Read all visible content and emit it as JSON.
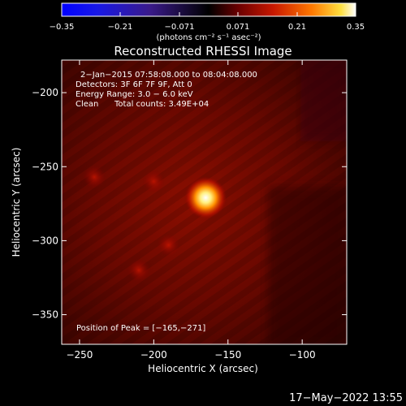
{
  "colorbar": {
    "ticks": [
      "−0.35",
      "−0.21",
      "−0.071",
      "0.071",
      "0.21",
      "0.35"
    ],
    "unit_label": "(photons cm⁻² s⁻¹ asec⁻²)",
    "range": [
      -0.35,
      0.35
    ]
  },
  "chart_data": {
    "type": "heatmap",
    "title": "Reconstructed RHESSI Image",
    "xlabel": "Heliocentric X (arcsec)",
    "ylabel": "Heliocentric Y (arcsec)",
    "xlim": [
      -262,
      -70
    ],
    "ylim": [
      -370,
      -178
    ],
    "x_ticks": [
      -250,
      -200,
      -150,
      -100
    ],
    "x_tick_labels": [
      "−250",
      "−200",
      "−150",
      "−100"
    ],
    "y_ticks": [
      -200,
      -250,
      -300,
      -350
    ],
    "y_tick_labels": [
      "−200",
      "−250",
      "−300",
      "−350"
    ],
    "info_lines": [
      "2−Jan−2015 07:58:08.000 to 08:04:08.000",
      "Detectors: 3F 6F 7F 9F, Att 0",
      "Energy Range: 3.0 − 6.0 keV"
    ],
    "clean_label": "Clean",
    "total_counts": "Total counts: 3.49E+04",
    "peak_text": "Position of Peak = [−165,−271]",
    "peak": {
      "x": -165,
      "y": -271
    },
    "secondary_sources": [
      {
        "x": -200,
        "y": -260
      },
      {
        "x": -210,
        "y": -320
      },
      {
        "x": -190,
        "y": -303
      },
      {
        "x": -240,
        "y": -257
      }
    ]
  },
  "footer": {
    "timestamp": "17−May−2022 13:55"
  }
}
